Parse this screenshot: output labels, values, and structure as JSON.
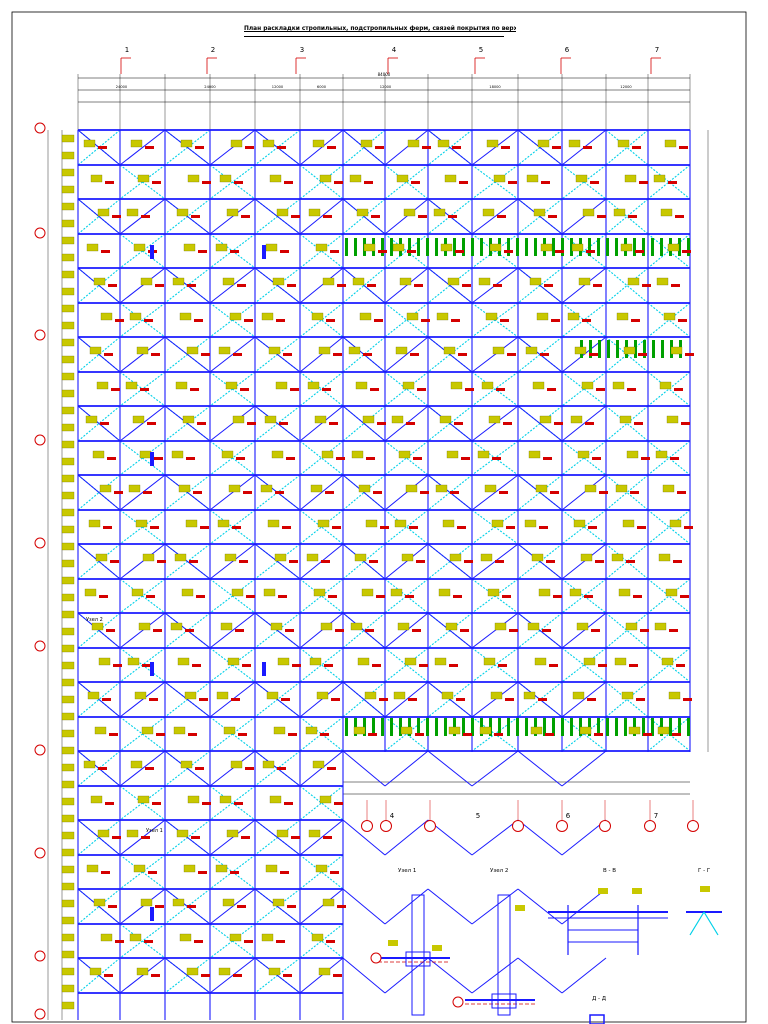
{
  "drawing": {
    "title": "План раскладки стропильных, подстропильных ферм, связей покрытия по верхнему поясу ферм. Балок в уровне покрытия",
    "column_axes_top": [
      "1",
      "2",
      "3",
      "4",
      "5",
      "6",
      "7"
    ],
    "column_axes_bottom": [
      "4",
      "5",
      "6",
      "7"
    ],
    "overall_dimension": "84000",
    "bay_dimensions": [
      "24000",
      "24000",
      "12000",
      "6000",
      "12000",
      "18000",
      "12000"
    ],
    "node_labels": [
      "Узел 1",
      "Узел 2"
    ],
    "section_labels": [
      "В - В",
      "Г - Г",
      "Д - Д"
    ],
    "colors": {
      "frame_line": "#1a1aff",
      "bracing": "#00d0e8",
      "label_fill": "#c8c800",
      "axis_marker": "#d40000",
      "green_element": "#00a000",
      "line": "#000000"
    }
  }
}
